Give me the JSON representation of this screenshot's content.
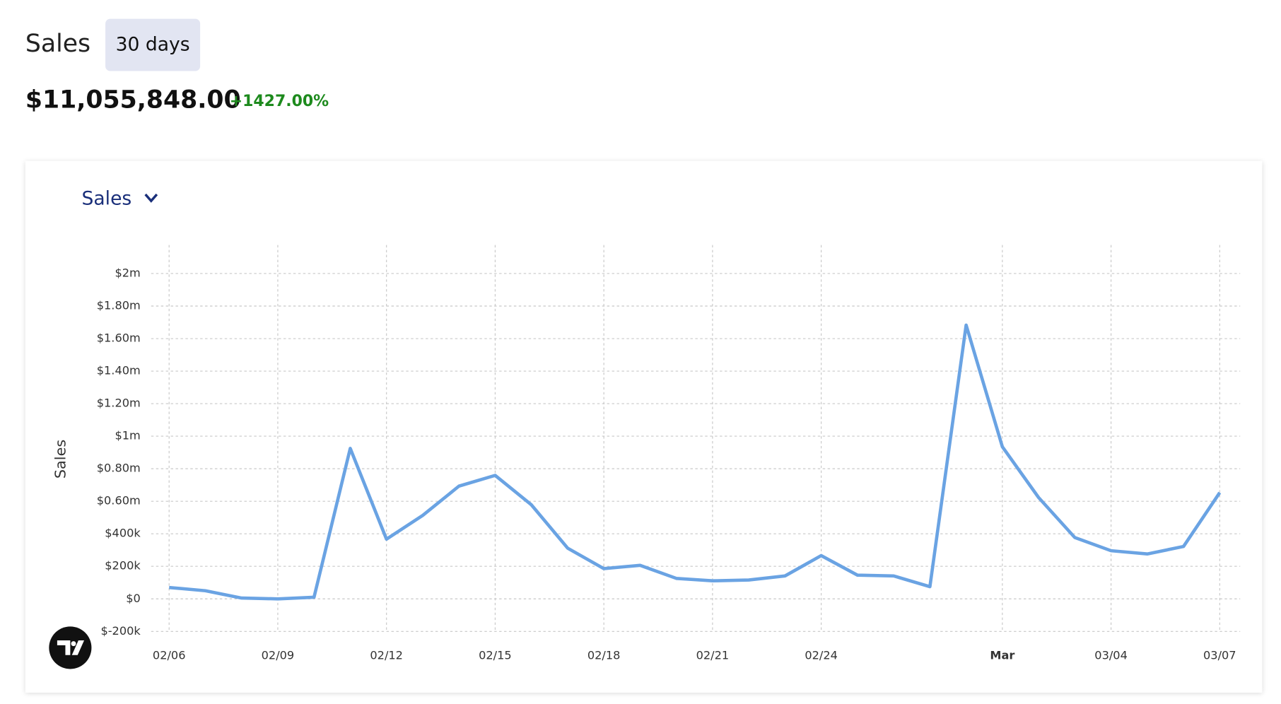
{
  "header": {
    "title": "Sales",
    "range_button": "30 days",
    "total": "$11,055,848.00",
    "change": "+1427.00%"
  },
  "chart_data": {
    "type": "line",
    "y_label": "Sales",
    "categories": [
      "02/06",
      null,
      null,
      "02/09",
      null,
      null,
      "02/12",
      null,
      null,
      "02/15",
      null,
      null,
      "02/18",
      null,
      null,
      "02/21",
      null,
      null,
      "02/24",
      null,
      null,
      null,
      null,
      "Mar",
      null,
      null,
      "03/04",
      null,
      null,
      "03/07"
    ],
    "series": [
      {
        "name": "Sales",
        "color": "#6aa3e3",
        "values": [
          70000,
          50000,
          5000,
          0,
          10000,
          925000,
          367000,
          513000,
          693000,
          759000,
          578000,
          312000,
          186000,
          206000,
          126000,
          111000,
          116000,
          141000,
          266000,
          146000,
          141000,
          75000,
          1683000,
          935000,
          623000,
          377000,
          296000,
          276000,
          322000,
          653000
        ]
      }
    ],
    "ylim": [
      -200000,
      2175000
    ],
    "yticks": [
      {
        "value": -200000,
        "label": "$-200k"
      },
      {
        "value": 0,
        "label": "$0"
      },
      {
        "value": 200000,
        "label": "$200k"
      },
      {
        "value": 400000,
        "label": "$400k"
      },
      {
        "value": 600000,
        "label": "$0.60m"
      },
      {
        "value": 800000,
        "label": "$0.80m"
      },
      {
        "value": 1000000,
        "label": "$1m"
      },
      {
        "value": 1200000,
        "label": "$1.20m"
      },
      {
        "value": 1400000,
        "label": "$1.40m"
      },
      {
        "value": 1600000,
        "label": "$1.60m"
      },
      {
        "value": 1800000,
        "label": "$1.80m"
      },
      {
        "value": 2000000,
        "label": "$2m"
      }
    ],
    "grid": true
  }
}
